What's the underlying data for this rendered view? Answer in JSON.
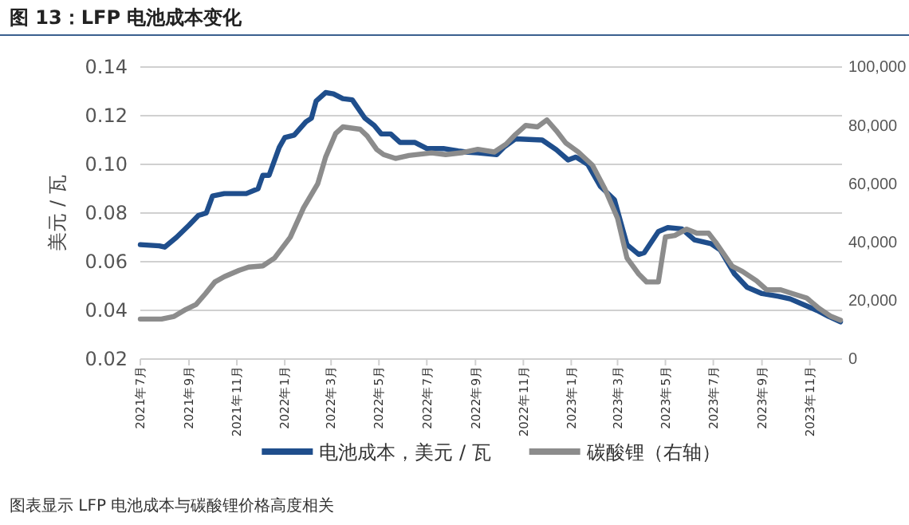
{
  "chart_data": {
    "type": "line",
    "title": "图 13：LFP 电池成本变化",
    "ylabel": "美元 / 瓦",
    "xlim": [
      "2021-07-01",
      "2023-12-12"
    ],
    "xticks": [
      {
        "value": "2021-07",
        "label": "2021年7月"
      },
      {
        "value": "2021-09",
        "label": "2021年9月"
      },
      {
        "value": "2021-11",
        "label": "2021年11月"
      },
      {
        "value": "2022-01",
        "label": "2022年1月"
      },
      {
        "value": "2022-03",
        "label": "2022年3月"
      },
      {
        "value": "2022-05",
        "label": "2022年5月"
      },
      {
        "value": "2022-07",
        "label": "2022年7月"
      },
      {
        "value": "2022-09",
        "label": "2022年9月"
      },
      {
        "value": "2022-11",
        "label": "2022年11月"
      },
      {
        "value": "2023-01",
        "label": "2023年1月"
      },
      {
        "value": "2023-03",
        "label": "2023年3月"
      },
      {
        "value": "2023-05",
        "label": "2023年5月"
      },
      {
        "value": "2023-07",
        "label": "2023年7月"
      },
      {
        "value": "2023-09",
        "label": "2023年9月"
      },
      {
        "value": "2023-11",
        "label": "2023年11月"
      }
    ],
    "ylim": [
      0.02,
      0.14
    ],
    "yticks": [
      {
        "value": 0.02,
        "label": "0.02"
      },
      {
        "value": 0.04,
        "label": "0.04"
      },
      {
        "value": 0.06,
        "label": "0.06"
      },
      {
        "value": 0.08,
        "label": "0.08"
      },
      {
        "value": 0.1,
        "label": "0.10"
      },
      {
        "value": 0.12,
        "label": "0.12"
      },
      {
        "value": 0.14,
        "label": "0.14"
      }
    ],
    "y2lim": [
      0,
      100000
    ],
    "y2ticks": [
      {
        "value": 0,
        "label": "0"
      },
      {
        "value": 20000,
        "label": "20,000"
      },
      {
        "value": 40000,
        "label": "40,000"
      },
      {
        "value": 60000,
        "label": "60,000"
      },
      {
        "value": 80000,
        "label": "80,000"
      },
      {
        "value": 100000,
        "label": "100,000"
      }
    ],
    "grid": "y",
    "legend": "bottom",
    "marker": "none",
    "line_style": "solid",
    "series": [
      {
        "name": "电池成本，美元 / 瓦",
        "color": "#1f4e8c",
        "x": [
          "2021-07-01",
          "2021-07-25",
          "2021-08-01",
          "2021-08-16",
          "2021-09-01",
          "2021-09-13",
          "2021-09-23",
          "2021-10-01",
          "2021-10-16",
          "2021-11-13",
          "2021-11-28",
          "2021-12-04",
          "2021-12-12",
          "2021-12-25",
          "2022-01-01",
          "2022-01-13",
          "2022-01-28",
          "2022-02-04",
          "2022-02-10",
          "2022-02-22",
          "2022-03-04",
          "2022-03-16",
          "2022-03-28",
          "2022-04-13",
          "2022-04-25",
          "2022-05-04",
          "2022-05-16",
          "2022-05-28",
          "2022-06-16",
          "2022-07-01",
          "2022-07-22",
          "2022-08-10",
          "2022-08-22",
          "2022-09-04",
          "2022-09-28",
          "2022-10-07",
          "2022-10-22",
          "2022-11-25",
          "2022-12-13",
          "2022-12-28",
          "2023-01-07",
          "2023-01-22",
          "2023-02-07",
          "2023-02-25",
          "2023-03-13",
          "2023-03-28",
          "2023-04-04",
          "2023-04-22",
          "2023-05-04",
          "2023-05-22",
          "2023-06-07",
          "2023-06-28",
          "2023-07-10",
          "2023-07-28",
          "2023-08-13",
          "2023-09-01",
          "2023-09-22",
          "2023-10-07",
          "2023-10-28",
          "2023-11-10",
          "2023-11-25",
          "2023-12-10"
        ],
        "values": [
          0.067,
          0.0665,
          0.066,
          0.07,
          0.075,
          0.079,
          0.08,
          0.087,
          0.088,
          0.088,
          0.09,
          0.0955,
          0.0955,
          0.107,
          0.111,
          0.112,
          0.1175,
          0.119,
          0.126,
          0.1295,
          0.129,
          0.127,
          0.1265,
          0.119,
          0.116,
          0.1125,
          0.1125,
          0.109,
          0.109,
          0.1065,
          0.1065,
          0.1055,
          0.105,
          0.1047,
          0.104,
          0.107,
          0.1105,
          0.11,
          0.106,
          0.1018,
          0.103,
          0.1,
          0.091,
          0.0855,
          0.067,
          0.063,
          0.0637,
          0.0724,
          0.074,
          0.0735,
          0.069,
          0.0674,
          0.0648,
          0.055,
          0.0495,
          0.0469,
          0.0458,
          0.0447,
          0.0418,
          0.04,
          0.0375,
          0.0353
        ]
      },
      {
        "name": "碳酸锂（右轴）",
        "color": "#8c8c8c",
        "axis": "y2",
        "x": [
          "2021-07-01",
          "2021-07-28",
          "2021-08-13",
          "2021-08-28",
          "2021-09-10",
          "2021-09-22",
          "2021-10-04",
          "2021-10-16",
          "2021-11-04",
          "2021-11-16",
          "2021-12-04",
          "2021-12-19",
          "2022-01-08",
          "2022-01-25",
          "2022-02-12",
          "2022-02-22",
          "2022-03-07",
          "2022-03-16",
          "2022-04-07",
          "2022-04-16",
          "2022-04-28",
          "2022-05-07",
          "2022-05-22",
          "2022-06-08",
          "2022-07-07",
          "2022-07-25",
          "2022-08-16",
          "2022-09-04",
          "2022-09-25",
          "2022-10-10",
          "2022-10-22",
          "2022-11-04",
          "2022-11-19",
          "2022-12-01",
          "2022-12-13",
          "2022-12-25",
          "2023-01-10",
          "2023-01-28",
          "2023-02-13",
          "2023-03-01",
          "2023-03-13",
          "2023-03-28",
          "2023-04-07",
          "2023-04-22",
          "2023-05-01",
          "2023-05-13",
          "2023-05-28",
          "2023-06-10",
          "2023-06-25",
          "2023-07-04",
          "2023-07-25",
          "2023-08-07",
          "2023-08-25",
          "2023-09-07",
          "2023-09-25",
          "2023-10-10",
          "2023-10-28",
          "2023-11-13",
          "2023-11-28",
          "2023-12-10"
        ],
        "values": [
          13700,
          13700,
          14600,
          17000,
          18700,
          22400,
          26400,
          28200,
          30400,
          31500,
          31900,
          34600,
          41700,
          51800,
          60000,
          69100,
          77300,
          79500,
          78700,
          76400,
          71800,
          70000,
          68700,
          69700,
          70600,
          70000,
          70700,
          71800,
          70900,
          73600,
          76900,
          80000,
          79500,
          81900,
          78200,
          74000,
          70900,
          66400,
          58200,
          48200,
          34600,
          29100,
          26400,
          26400,
          41800,
          42300,
          44500,
          43100,
          43100,
          40000,
          31800,
          30000,
          26800,
          23700,
          23700,
          22400,
          20900,
          17300,
          14600,
          13300
        ]
      }
    ],
    "annotations": [
      "图表显示 LFP 电池成本与碳酸锂价格高度相关"
    ]
  }
}
